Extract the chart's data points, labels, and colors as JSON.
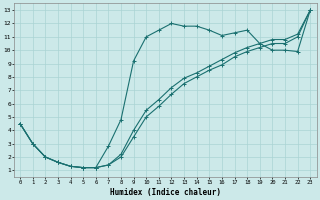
{
  "title": "",
  "xlabel": "Humidex (Indice chaleur)",
  "xlim": [
    0,
    23
  ],
  "ylim": [
    1,
    13
  ],
  "xticks": [
    0,
    1,
    2,
    3,
    4,
    5,
    6,
    7,
    8,
    9,
    10,
    11,
    12,
    13,
    14,
    15,
    16,
    17,
    18,
    19,
    20,
    21,
    22,
    23
  ],
  "yticks": [
    1,
    2,
    3,
    4,
    5,
    6,
    7,
    8,
    9,
    10,
    11,
    12,
    13
  ],
  "bg_color": "#cce9e9",
  "grid_color": "#aad4d4",
  "line_color": "#1a7070",
  "line1_x": [
    0,
    1,
    2,
    3,
    4,
    5,
    6,
    7,
    8,
    9,
    10,
    11,
    12,
    13,
    14,
    15,
    16,
    17,
    18,
    19,
    20,
    21,
    22,
    23
  ],
  "line1_y": [
    4.5,
    3.0,
    2.0,
    1.6,
    1.3,
    1.2,
    1.2,
    2.8,
    4.8,
    9.2,
    11.0,
    11.5,
    12.0,
    11.8,
    11.8,
    11.5,
    11.1,
    11.3,
    11.5,
    10.5,
    10.0,
    10.0,
    9.9,
    13.0
  ],
  "line2_x": [
    0,
    1,
    2,
    3,
    4,
    5,
    6,
    7,
    8,
    9,
    10,
    11,
    12,
    13,
    14,
    15,
    16,
    17,
    18,
    19,
    20,
    21,
    22,
    23
  ],
  "line2_y": [
    4.5,
    3.0,
    2.0,
    1.6,
    1.3,
    1.2,
    1.2,
    1.4,
    2.2,
    4.0,
    5.5,
    6.3,
    7.2,
    7.9,
    8.3,
    8.8,
    9.3,
    9.8,
    10.2,
    10.5,
    10.8,
    10.8,
    11.2,
    13.0
  ],
  "line3_x": [
    0,
    1,
    2,
    3,
    4,
    5,
    6,
    7,
    8,
    9,
    10,
    11,
    12,
    13,
    14,
    15,
    16,
    17,
    18,
    19,
    20,
    21,
    22,
    23
  ],
  "line3_y": [
    4.5,
    3.0,
    2.0,
    1.6,
    1.3,
    1.2,
    1.2,
    1.4,
    2.0,
    3.5,
    5.0,
    5.8,
    6.7,
    7.5,
    8.0,
    8.5,
    8.9,
    9.5,
    9.9,
    10.2,
    10.5,
    10.5,
    11.0,
    13.0
  ]
}
